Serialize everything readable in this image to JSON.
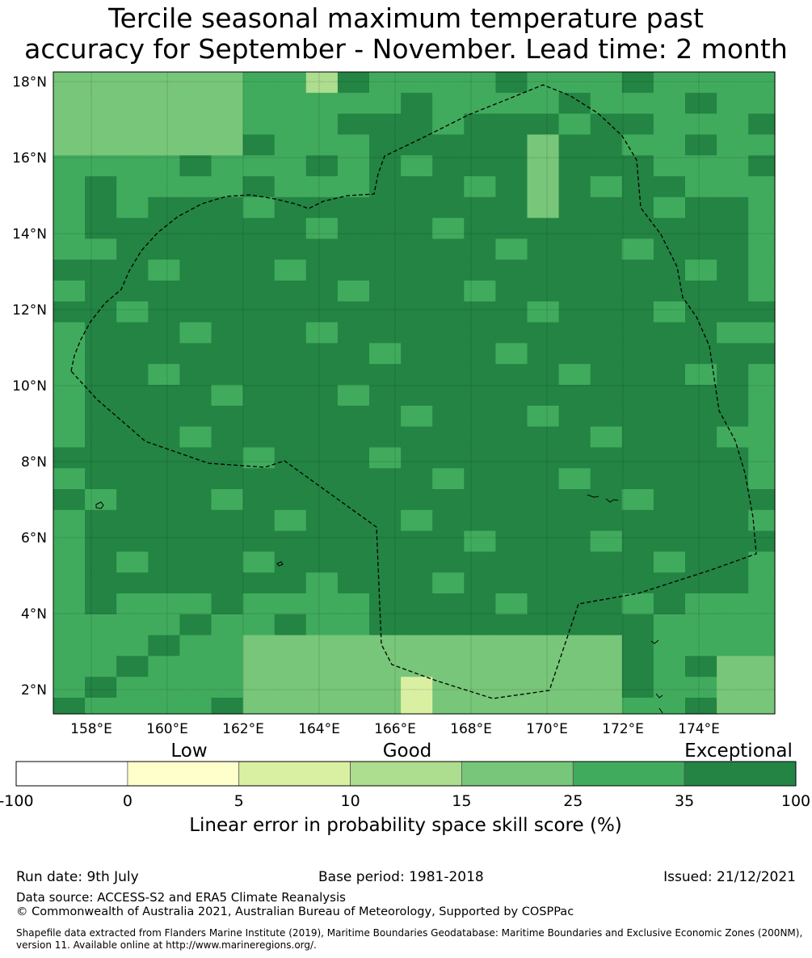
{
  "title": {
    "line1": "Tercile seasonal maximum temperature past",
    "line2": "accuracy for September - November. Lead time: 2 month"
  },
  "map": {
    "lat_labels": [
      "18°N",
      "16°N",
      "14°N",
      "12°N",
      "10°N",
      "8°N",
      "6°N",
      "4°N",
      "2°N"
    ],
    "lon_labels": [
      "158°E",
      "160°E",
      "162°E",
      "164°E",
      "166°E",
      "168°E",
      "170°E",
      "172°E",
      "174°E"
    ],
    "lon_range": [
      157,
      176
    ],
    "lat_range": [
      1.4,
      18.4
    ]
  },
  "colorbar": {
    "category_labels": [
      "Low",
      "Good",
      "Exceptional"
    ],
    "ticks": [
      "-100",
      "0",
      "5",
      "10",
      "15",
      "25",
      "35",
      "100"
    ],
    "colors": [
      "#ffffff",
      "#ffffcc",
      "#d9f0a3",
      "#addd8e",
      "#78c679",
      "#41ab5d",
      "#238443"
    ],
    "title": "Linear error in probability space skill score (%)"
  },
  "footer": {
    "run_date": "Run date: 9th July",
    "base_period": "Base period: 1981-2018",
    "issued": "Issued: 21/12/2021",
    "data_source": "Data source: ACCESS-S2 and ERA5 Climate Reanalysis",
    "copyright": "© Commonwealth of Australia 2021, Australian Bureau of Meteorology, Supported by COSPPac",
    "shapefile_note": "Shapefile data extracted from Flanders Marine Institute (2019), Maritime Boundaries Geodatabase: Maritime Boundaries and Exclusive Economic Zones (200NM), version 11. Available online at http://www.marineregions.org/."
  }
}
